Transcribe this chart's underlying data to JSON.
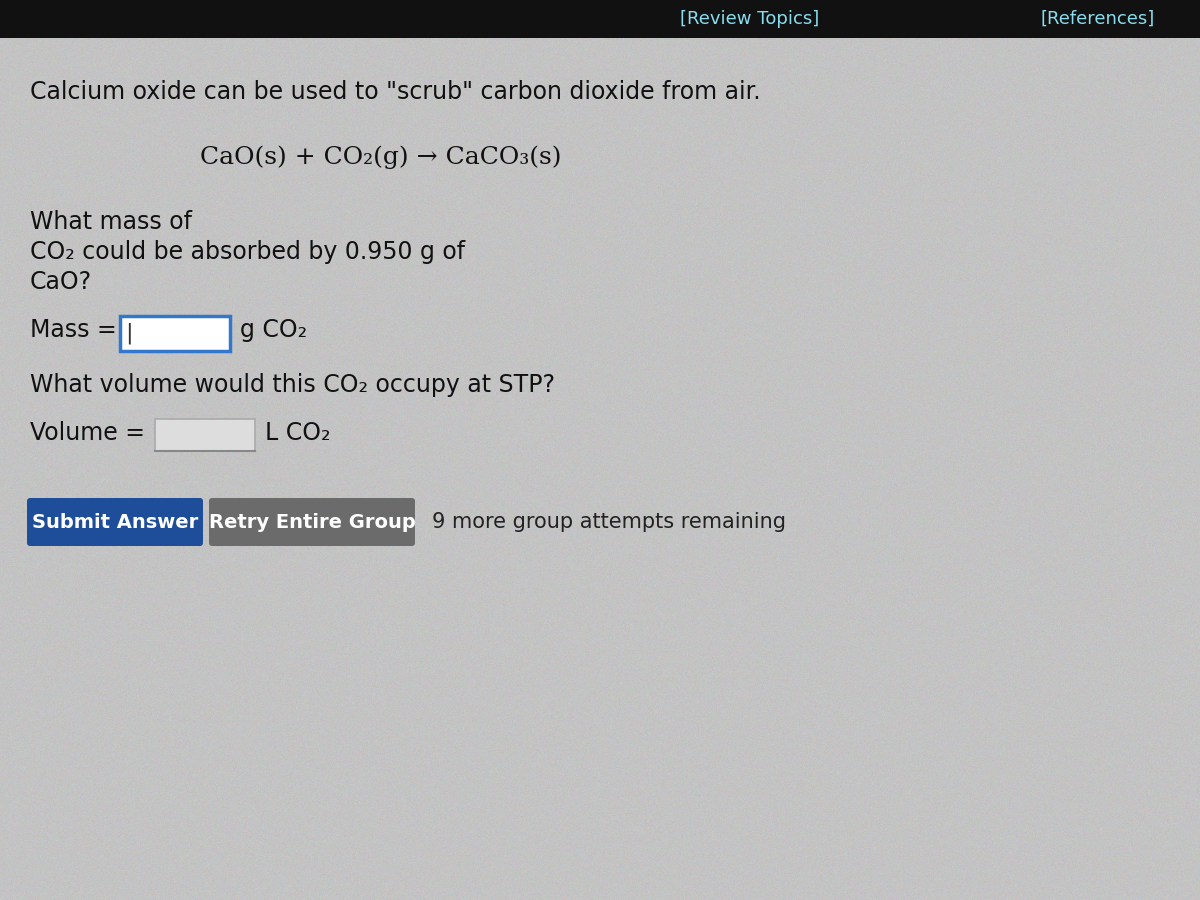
{
  "bg_color": "#b8b8b8",
  "header_bg": "#111111",
  "review_topics_text": "[Review Topics]",
  "references_text": "[References]",
  "header_text_color": "#88ddee",
  "main_bg": "#d0d0d0",
  "title_line": "Calcium oxide can be used to \"scrub\" carbon dioxide from air.",
  "equation": "CaO(s) + CO₂(g) → CaCO₃(s)",
  "question1_line1": "What mass of",
  "question1_line2": "CO₂ could be absorbed by 0.950 g of",
  "question1_line3": "CaO?",
  "mass_label": "Mass = ",
  "mass_unit": "g CO₂",
  "question2": "What volume would this CO₂ occupy at STP?",
  "volume_label": "Volume = ",
  "volume_unit": "L CO₂",
  "submit_text": "Submit Answer",
  "retry_text": "Retry Entire Group",
  "attempts_text": "9 more group attempts remaining",
  "submit_color": "#1e4d99",
  "retry_color": "#6b6b6b",
  "button_text_color": "#ffffff",
  "attempts_text_color": "#222222",
  "text_color": "#111111",
  "input_box_color_mass": "#3377cc",
  "font_size_header": 13,
  "font_size_title": 17,
  "font_size_equation": 18,
  "font_size_body": 17,
  "font_size_button": 14
}
